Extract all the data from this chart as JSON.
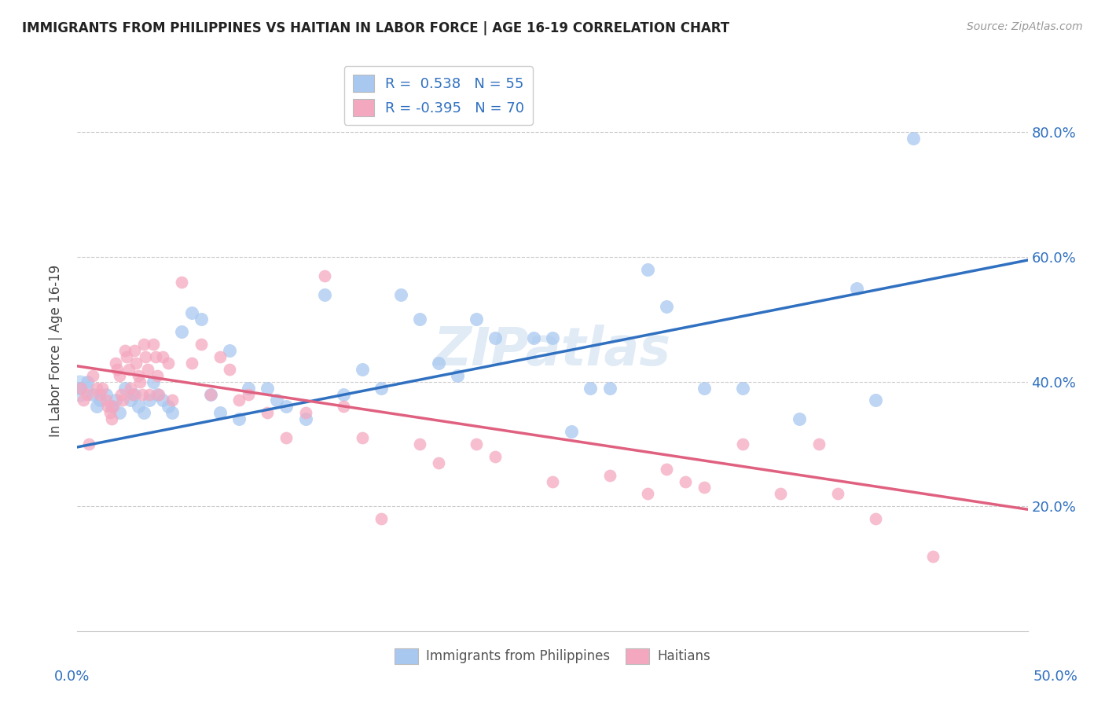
{
  "title": "IMMIGRANTS FROM PHILIPPINES VS HAITIAN IN LABOR FORCE | AGE 16-19 CORRELATION CHART",
  "source": "Source: ZipAtlas.com",
  "ylabel": "In Labor Force | Age 16-19",
  "xlim": [
    0.0,
    0.5
  ],
  "ylim": [
    0.0,
    0.9
  ],
  "yticks": [
    0.2,
    0.4,
    0.6,
    0.8
  ],
  "yticklabels": [
    "20.0%",
    "40.0%",
    "60.0%",
    "80.0%"
  ],
  "legend1_label": "R =  0.538   N = 55",
  "legend2_label": "R = -0.395   N = 70",
  "blue_color": "#A8C8F0",
  "pink_color": "#F4A8C0",
  "line_blue": "#3070C0",
  "line_pink": "#E06080",
  "watermark": "ZIPatlas",
  "philippine_x": [
    0.001,
    0.005,
    0.008,
    0.01,
    0.012,
    0.015,
    0.018,
    0.02,
    0.022,
    0.025,
    0.028,
    0.03,
    0.032,
    0.035,
    0.038,
    0.04,
    0.042,
    0.045,
    0.048,
    0.05,
    0.055,
    0.06,
    0.065,
    0.07,
    0.075,
    0.08,
    0.085,
    0.09,
    0.1,
    0.105,
    0.11,
    0.12,
    0.13,
    0.14,
    0.15,
    0.16,
    0.17,
    0.18,
    0.19,
    0.2,
    0.21,
    0.22,
    0.24,
    0.25,
    0.26,
    0.27,
    0.28,
    0.3,
    0.31,
    0.33,
    0.35,
    0.38,
    0.41,
    0.42,
    0.44
  ],
  "philippine_y": [
    0.39,
    0.4,
    0.38,
    0.36,
    0.37,
    0.38,
    0.36,
    0.37,
    0.35,
    0.39,
    0.37,
    0.38,
    0.36,
    0.35,
    0.37,
    0.4,
    0.38,
    0.37,
    0.36,
    0.35,
    0.48,
    0.51,
    0.5,
    0.38,
    0.35,
    0.45,
    0.34,
    0.39,
    0.39,
    0.37,
    0.36,
    0.34,
    0.54,
    0.38,
    0.42,
    0.39,
    0.54,
    0.5,
    0.43,
    0.41,
    0.5,
    0.47,
    0.47,
    0.47,
    0.32,
    0.39,
    0.39,
    0.58,
    0.52,
    0.39,
    0.39,
    0.34,
    0.55,
    0.37,
    0.79
  ],
  "haitian_x": [
    0.002,
    0.003,
    0.005,
    0.006,
    0.008,
    0.01,
    0.012,
    0.013,
    0.015,
    0.016,
    0.017,
    0.018,
    0.019,
    0.02,
    0.021,
    0.022,
    0.023,
    0.024,
    0.025,
    0.026,
    0.027,
    0.028,
    0.029,
    0.03,
    0.031,
    0.032,
    0.033,
    0.034,
    0.035,
    0.036,
    0.037,
    0.038,
    0.04,
    0.041,
    0.042,
    0.043,
    0.045,
    0.048,
    0.05,
    0.055,
    0.06,
    0.065,
    0.07,
    0.075,
    0.08,
    0.085,
    0.09,
    0.1,
    0.11,
    0.12,
    0.13,
    0.14,
    0.15,
    0.16,
    0.18,
    0.19,
    0.21,
    0.22,
    0.25,
    0.28,
    0.3,
    0.31,
    0.32,
    0.33,
    0.35,
    0.37,
    0.39,
    0.4,
    0.42,
    0.45
  ],
  "haitian_y": [
    0.39,
    0.37,
    0.38,
    0.3,
    0.41,
    0.39,
    0.38,
    0.39,
    0.37,
    0.36,
    0.35,
    0.34,
    0.36,
    0.43,
    0.42,
    0.41,
    0.38,
    0.37,
    0.45,
    0.44,
    0.42,
    0.39,
    0.38,
    0.45,
    0.43,
    0.41,
    0.4,
    0.38,
    0.46,
    0.44,
    0.42,
    0.38,
    0.46,
    0.44,
    0.41,
    0.38,
    0.44,
    0.43,
    0.37,
    0.56,
    0.43,
    0.46,
    0.38,
    0.44,
    0.42,
    0.37,
    0.38,
    0.35,
    0.31,
    0.35,
    0.57,
    0.36,
    0.31,
    0.18,
    0.3,
    0.27,
    0.3,
    0.28,
    0.24,
    0.25,
    0.22,
    0.26,
    0.24,
    0.23,
    0.3,
    0.22,
    0.3,
    0.22,
    0.18,
    0.12
  ],
  "blue_line_x": [
    0.0,
    0.5
  ],
  "blue_line_y": [
    0.295,
    0.595
  ],
  "pink_line_x": [
    0.0,
    0.5
  ],
  "pink_line_y": [
    0.425,
    0.195
  ],
  "background_color": "#FFFFFF",
  "grid_color": "#CCCCCC",
  "title_color": "#222222",
  "axis_label_color": "#444444",
  "tick_label_color": "#3070C0"
}
